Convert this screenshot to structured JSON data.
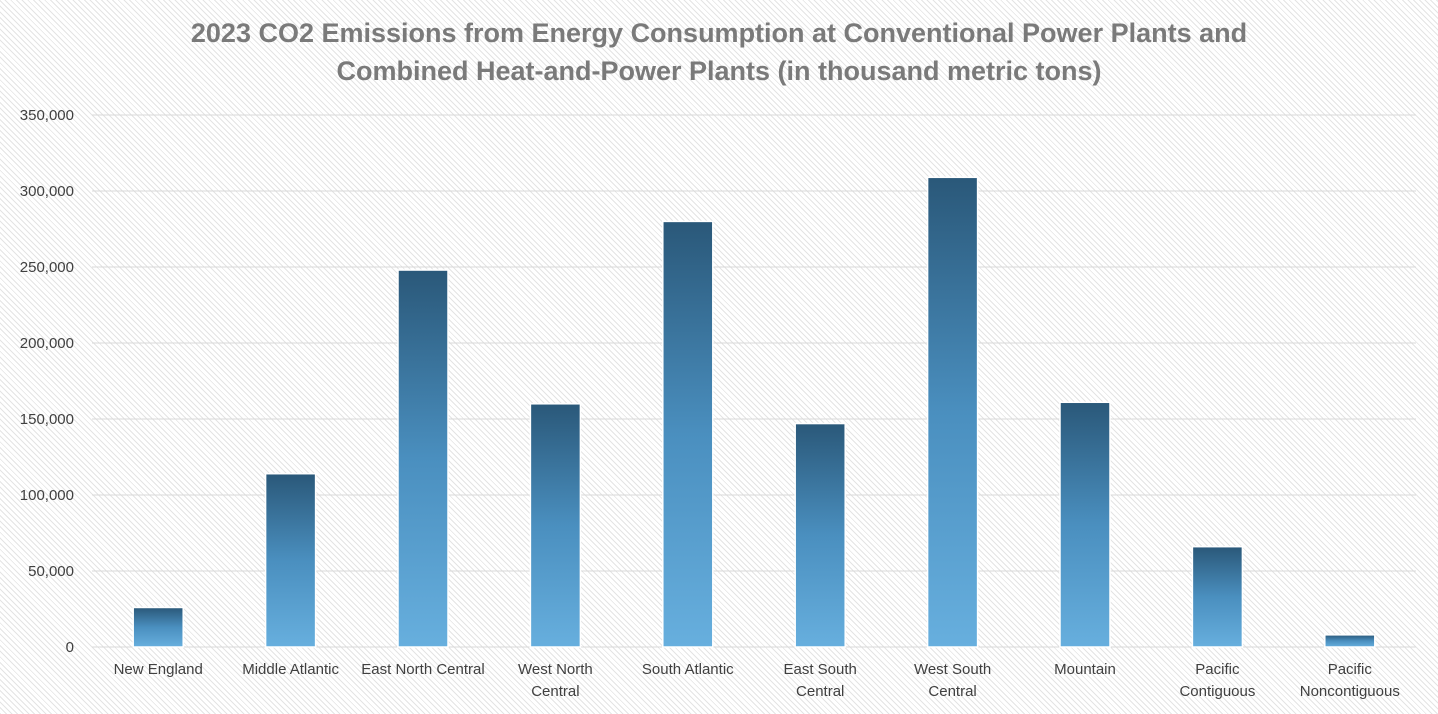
{
  "chart_data": {
    "type": "bar",
    "title_lines": [
      "2023 CO2 Emissions from Energy Consumption at Conventional Power Plants and",
      "Combined Heat-and-Power Plants (in thousand metric tons)"
    ],
    "categories": [
      [
        "New England"
      ],
      [
        "Middle Atlantic"
      ],
      [
        "East North Central"
      ],
      [
        "West North",
        "Central"
      ],
      [
        "South Atlantic"
      ],
      [
        "East South",
        "Central"
      ],
      [
        "West South",
        "Central"
      ],
      [
        "Mountain"
      ],
      [
        "Pacific",
        "Contiguous"
      ],
      [
        "Pacific",
        "Noncontiguous"
      ]
    ],
    "values": [
      26000,
      114000,
      248000,
      160000,
      280000,
      147000,
      309000,
      161000,
      66000,
      8000
    ],
    "ylim": [
      0,
      350000
    ],
    "yticks": [
      0,
      50000,
      100000,
      150000,
      200000,
      250000,
      300000,
      350000
    ],
    "ytick_labels": [
      "0",
      "50,000",
      "100,000",
      "150,000",
      "200,000",
      "250,000",
      "300,000",
      "350,000"
    ],
    "xlabel": "",
    "ylabel": "",
    "grid": true,
    "legend": "none",
    "colors": {
      "bar_top": "#2a5879",
      "bar_mid": "#4a8fbf",
      "bar_bottom": "#67afde",
      "grid": "#d9d9d9",
      "title": "#7a7a7a",
      "axis_text": "#404040"
    }
  }
}
